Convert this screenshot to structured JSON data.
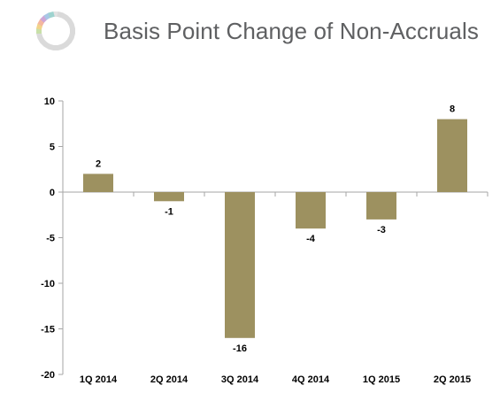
{
  "header": {
    "title": "Basis Point Change of Non-Accruals",
    "logo": "ring-logo"
  },
  "colors": {
    "bar": "#9d9160",
    "title": "#5f6062",
    "axis": "#a6a6a6"
  },
  "chart_data": {
    "type": "bar",
    "title": "",
    "xlabel": "",
    "ylabel": "",
    "categories": [
      "1Q 2014",
      "2Q 2014",
      "3Q 2014",
      "4Q 2014",
      "1Q 2015",
      "2Q 2015"
    ],
    "values": [
      2,
      -1,
      -16,
      -4,
      -3,
      8
    ],
    "data_labels": [
      "2",
      "-1",
      "-16",
      "-4",
      "-3",
      "8"
    ],
    "ylim": [
      -20,
      10
    ],
    "yticks": [
      10,
      5,
      0,
      -5,
      -10,
      -15,
      -20
    ],
    "grid": false,
    "legend": "none"
  }
}
